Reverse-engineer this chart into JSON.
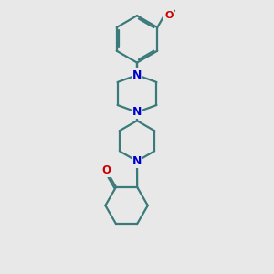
{
  "bg_color": "#e8e8e8",
  "bond_color": "#3a7a7a",
  "N_color": "#0000cc",
  "O_color": "#cc0000",
  "bond_width": 1.6,
  "dbo": 0.055,
  "xlim": [
    -1.8,
    1.8
  ],
  "ylim": [
    -4.2,
    4.2
  ]
}
